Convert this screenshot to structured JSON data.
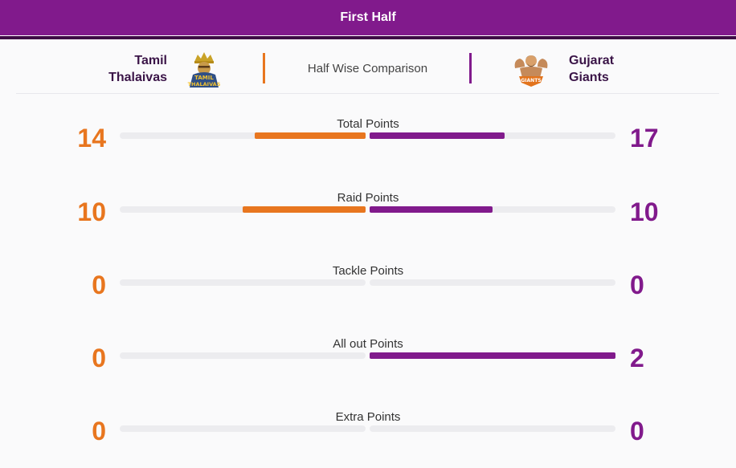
{
  "header": {
    "title": "First Half"
  },
  "teams": {
    "left": {
      "name_line1": "Tamil",
      "name_line2": "Thalaivas",
      "logo_text_1": "TAMIL",
      "logo_text_2": "THALAIVAS",
      "color": "#e8761f"
    },
    "right": {
      "name_line1": "Gujarat",
      "name_line2": "Giants",
      "logo_text": "GIANTS",
      "color": "#811a8c"
    }
  },
  "comparison_title": "Half Wise Comparison",
  "stats": [
    {
      "label": "Total Points",
      "left": "14",
      "right": "17",
      "left_fill": 0.45,
      "right_fill": 0.55
    },
    {
      "label": "Raid Points",
      "left": "10",
      "right": "10",
      "left_fill": 0.5,
      "right_fill": 0.5
    },
    {
      "label": "Tackle Points",
      "left": "0",
      "right": "0",
      "left_fill": 0,
      "right_fill": 0
    },
    {
      "label": "All out Points",
      "left": "0",
      "right": "2",
      "left_fill": 0,
      "right_fill": 1
    },
    {
      "label": "Extra Points",
      "left": "0",
      "right": "0",
      "left_fill": 0,
      "right_fill": 0
    }
  ]
}
